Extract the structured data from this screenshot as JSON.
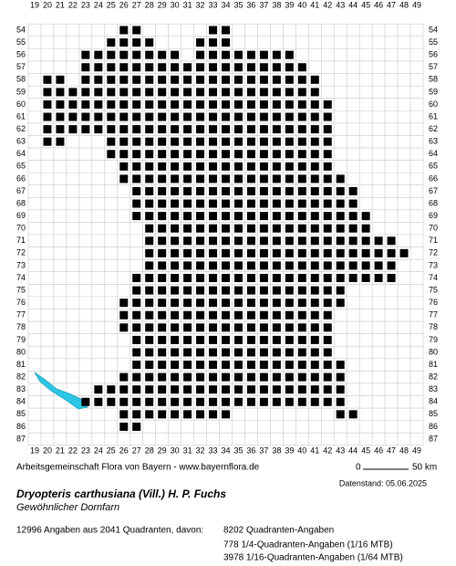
{
  "map": {
    "columns": [
      19,
      20,
      21,
      22,
      23,
      24,
      25,
      26,
      27,
      28,
      29,
      30,
      31,
      32,
      33,
      34,
      35,
      36,
      37,
      38,
      39,
      40,
      41,
      42,
      43,
      44,
      45,
      46,
      47,
      48,
      49
    ],
    "rows": [
      54,
      55,
      56,
      57,
      58,
      59,
      60,
      61,
      62,
      63,
      64,
      65,
      66,
      67,
      68,
      69,
      70,
      71,
      72,
      73,
      74,
      75,
      76,
      77,
      78,
      79,
      80,
      81,
      82,
      83,
      84,
      85,
      86,
      87
    ],
    "occupied": [
      {
        "row": 54,
        "spans": [
          [
            26,
            27
          ],
          [
            33,
            34
          ]
        ]
      },
      {
        "row": 55,
        "spans": [
          [
            25,
            28
          ],
          [
            32,
            34
          ]
        ]
      },
      {
        "row": 56,
        "spans": [
          [
            23,
            30
          ],
          [
            32,
            39
          ]
        ]
      },
      {
        "row": 57,
        "spans": [
          [
            23,
            40
          ]
        ]
      },
      {
        "row": 58,
        "spans": [
          [
            20,
            21
          ],
          [
            23,
            41
          ]
        ]
      },
      {
        "row": 59,
        "spans": [
          [
            20,
            41
          ]
        ]
      },
      {
        "row": 60,
        "spans": [
          [
            20,
            42
          ]
        ]
      },
      {
        "row": 61,
        "spans": [
          [
            20,
            42
          ]
        ]
      },
      {
        "row": 62,
        "spans": [
          [
            20,
            42
          ]
        ]
      },
      {
        "row": 63,
        "spans": [
          [
            20,
            21
          ],
          [
            25,
            42
          ]
        ]
      },
      {
        "row": 64,
        "spans": [
          [
            25,
            42
          ]
        ]
      },
      {
        "row": 65,
        "spans": [
          [
            26,
            42
          ]
        ]
      },
      {
        "row": 66,
        "spans": [
          [
            26,
            43
          ]
        ]
      },
      {
        "row": 67,
        "spans": [
          [
            27,
            44
          ]
        ]
      },
      {
        "row": 68,
        "spans": [
          [
            27,
            44
          ]
        ]
      },
      {
        "row": 69,
        "spans": [
          [
            27,
            45
          ]
        ]
      },
      {
        "row": 70,
        "spans": [
          [
            28,
            45
          ]
        ]
      },
      {
        "row": 71,
        "spans": [
          [
            28,
            47
          ]
        ]
      },
      {
        "row": 72,
        "spans": [
          [
            28,
            48
          ]
        ]
      },
      {
        "row": 73,
        "spans": [
          [
            28,
            47
          ]
        ]
      },
      {
        "row": 74,
        "spans": [
          [
            27,
            47
          ]
        ]
      },
      {
        "row": 75,
        "spans": [
          [
            27,
            43
          ]
        ]
      },
      {
        "row": 76,
        "spans": [
          [
            26,
            43
          ]
        ]
      },
      {
        "row": 77,
        "spans": [
          [
            26,
            42
          ]
        ]
      },
      {
        "row": 78,
        "spans": [
          [
            26,
            42
          ]
        ]
      },
      {
        "row": 79,
        "spans": [
          [
            27,
            42
          ]
        ]
      },
      {
        "row": 80,
        "spans": [
          [
            27,
            42
          ]
        ]
      },
      {
        "row": 81,
        "spans": [
          [
            27,
            43
          ]
        ]
      },
      {
        "row": 82,
        "spans": [
          [
            26,
            43
          ]
        ]
      },
      {
        "row": 83,
        "spans": [
          [
            24,
            43
          ]
        ]
      },
      {
        "row": 84,
        "spans": [
          [
            23,
            43
          ]
        ]
      },
      {
        "row": 85,
        "spans": [
          [
            26,
            34
          ],
          [
            43,
            44
          ]
        ]
      },
      {
        "row": 86,
        "spans": [
          [
            26,
            27
          ]
        ]
      }
    ]
  },
  "footer": {
    "credit": "Arbeitsgemeinschaft Flora von Bayern - www.bayernflora.de",
    "scale_start": "0",
    "scale_end": "50 km",
    "date": "Datenstand: 05.06.2025",
    "species": "Dryopteris carthusiana (Vill.) H. P. Fuchs",
    "common_name": "Gewöhnlicher Dornfarn",
    "summary": "12996 Angaben aus 2041 Quadranten, davon:",
    "details": [
      "8202 Quadranten-Angaben",
      "778 1/4-Quadranten-Angaben (1/16 MTB)",
      "3978 1/16-Quadranten-Angaben (1/64 MTB)"
    ]
  }
}
